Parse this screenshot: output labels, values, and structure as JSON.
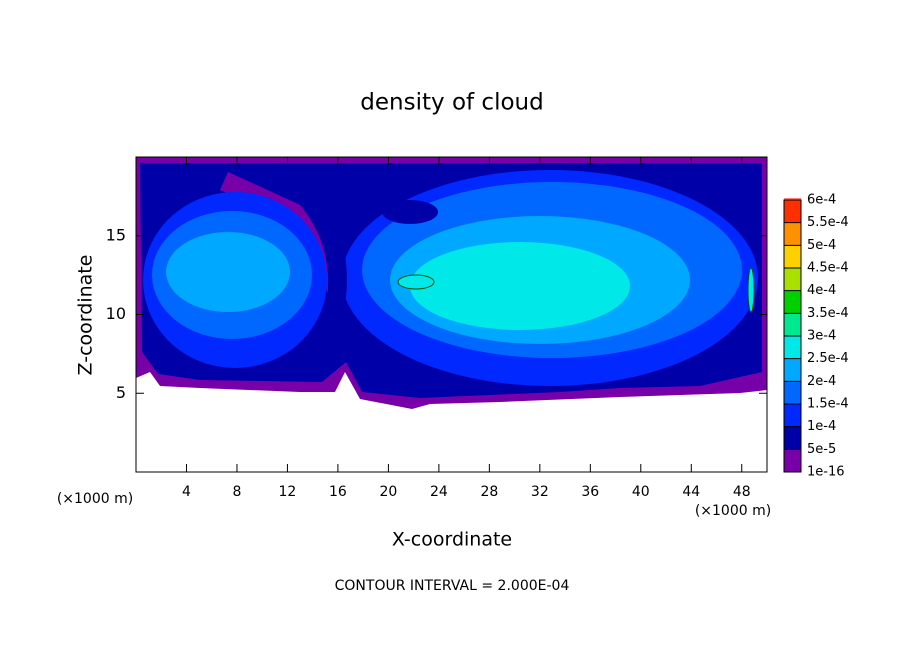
{
  "chart_data": {
    "type": "contourf",
    "title": "density of cloud",
    "x_label": "X-coordinate",
    "y_label": "Z-coordinate",
    "x_unit_label": "(×1000 m)",
    "footer": "CONTOUR INTERVAL = 2.000E-04",
    "xlim": [
      0,
      50
    ],
    "xticks": [
      4,
      8,
      12,
      16,
      20,
      24,
      28,
      32,
      36,
      40,
      44,
      48
    ],
    "ylim": [
      0,
      20
    ],
    "yticks": [
      5,
      10,
      15
    ],
    "colorbar_ticks": [
      {
        "value": 1e-16,
        "label": "1e-16"
      },
      {
        "value": 5e-05,
        "label": "5e-5"
      },
      {
        "value": 0.0001,
        "label": "1e-4"
      },
      {
        "value": 0.00015,
        "label": "1.5e-4"
      },
      {
        "value": 0.0002,
        "label": "2e-4"
      },
      {
        "value": 0.00025,
        "label": "2.5e-4"
      },
      {
        "value": 0.0003,
        "label": "3e-4"
      },
      {
        "value": 0.00035,
        "label": "3.5e-4"
      },
      {
        "value": 0.0004,
        "label": "4e-4"
      },
      {
        "value": 0.00045,
        "label": "4.5e-4"
      },
      {
        "value": 0.0005,
        "label": "5e-4"
      },
      {
        "value": 0.00055,
        "label": "5.5e-4"
      },
      {
        "value": 0.0006,
        "label": "6e-4"
      }
    ],
    "colors": [
      "#7800a8",
      "#0000a8",
      "#0028ff",
      "#0068ff",
      "#00a8ff",
      "#00e8e8",
      "#00e890",
      "#00d000",
      "#a8e000",
      "#ffd000",
      "#ff9000",
      "#ff3000"
    ],
    "top_color": "#ff8080"
  }
}
